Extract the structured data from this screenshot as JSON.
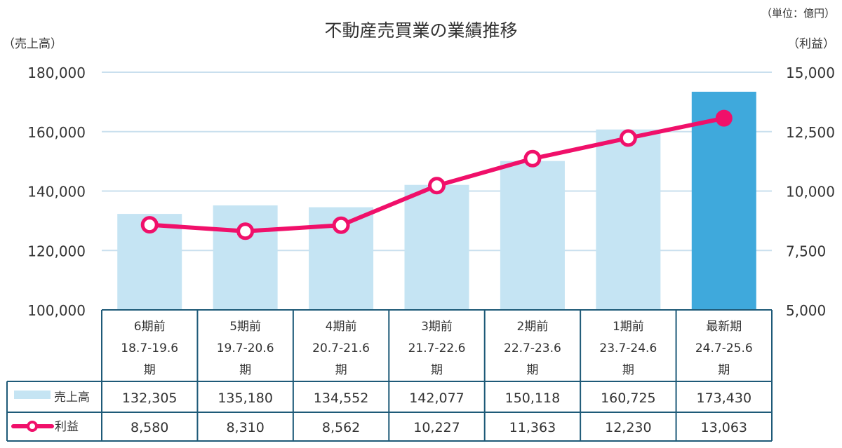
{
  "chart_data": {
    "type": "bar+line",
    "title": "不動産売買業の業績推移",
    "unit_note": "（単位：億円）",
    "left_axis_label": "（売上高）",
    "right_axis_label": "（利益）",
    "left_ylim": [
      100000,
      180000
    ],
    "left_ticks": [
      "100,000",
      "120,000",
      "140,000",
      "160,000",
      "180,000"
    ],
    "right_ylim": [
      5000,
      15000
    ],
    "right_ticks": [
      "5,000",
      "7,500",
      "10,000",
      "12,500",
      "15,000"
    ],
    "grid": true,
    "categories": [
      [
        "6期前",
        "18.7-19.6",
        "期"
      ],
      [
        "5期前",
        "19.7-20.6",
        "期"
      ],
      [
        "4期前",
        "20.7-21.6",
        "期"
      ],
      [
        "3期前",
        "21.7-22.6",
        "期"
      ],
      [
        "2期前",
        "22.7-23.6",
        "期"
      ],
      [
        "1期前",
        "23.7-24.6",
        "期"
      ],
      [
        "最新期",
        "24.7-25.6",
        "期"
      ]
    ],
    "series": [
      {
        "name": "売上高",
        "type": "bar",
        "axis": "left",
        "color": "#c5e4f3",
        "highlight_color": "#3fa9dc",
        "values": [
          132305,
          135180,
          134552,
          142077,
          150118,
          160725,
          173430
        ],
        "labels": [
          "132,305",
          "135,180",
          "134,552",
          "142,077",
          "150,118",
          "160,725",
          "173,430"
        ]
      },
      {
        "name": "利益",
        "type": "line",
        "axis": "right",
        "color": "#f0106a",
        "values": [
          8580,
          8310,
          8562,
          10227,
          11363,
          12230,
          13063
        ],
        "labels": [
          "8,580",
          "8,310",
          "8,562",
          "10,227",
          "11,363",
          "12,230",
          "13,063"
        ]
      }
    ]
  }
}
